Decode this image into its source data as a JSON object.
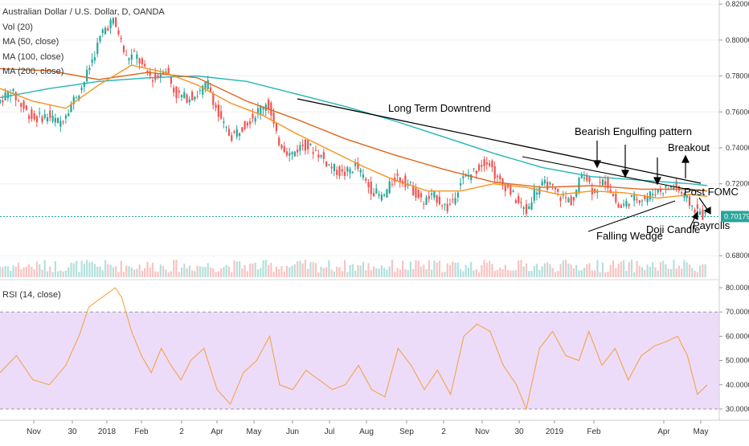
{
  "header": {
    "symbol_title": "Australian Dollar / U.S. Dollar, D, OANDA",
    "indicators": [
      "Vol (20)",
      "MA (50, close)",
      "MA (100, close)",
      "MA (200, close)"
    ]
  },
  "rsi_panel": {
    "label": "RSI (14, close)"
  },
  "colors": {
    "up": "#26a69a",
    "down": "#ef5350",
    "ma50": "#f7931e",
    "ma100": "#e0651a",
    "ma200": "#26b5b5",
    "rsi_line": "#f5a44a",
    "rsi_band": "#ecdcfa",
    "price_line": "#26a69a"
  },
  "chart_data": [
    {
      "type": "candlestick",
      "title": "Australian Dollar / U.S. Dollar, D, OANDA",
      "ylim": [
        0.668,
        0.8205
      ],
      "y_ticks": [
        "0.82000",
        "0.80000",
        "0.78000",
        "0.76000",
        "0.74000",
        "0.72000",
        "0.70179",
        "0.68000"
      ],
      "last_price": 0.70179,
      "x_ticks": [
        "Nov",
        "30",
        "2018",
        "Feb",
        "2",
        "Apr",
        "May",
        "Jun",
        "Jul",
        "Aug",
        "Sep",
        "2",
        "Nov",
        "30",
        "2019",
        "Feb",
        "Apr",
        "May"
      ],
      "price_path": [
        {
          "x": 0,
          "y": 0.765
        },
        {
          "x": 8,
          "y": 0.772
        },
        {
          "x": 15,
          "y": 0.763
        },
        {
          "x": 22,
          "y": 0.756
        },
        {
          "x": 30,
          "y": 0.758
        },
        {
          "x": 38,
          "y": 0.754
        },
        {
          "x": 45,
          "y": 0.765
        },
        {
          "x": 52,
          "y": 0.775
        },
        {
          "x": 58,
          "y": 0.79
        },
        {
          "x": 64,
          "y": 0.805
        },
        {
          "x": 70,
          "y": 0.811
        },
        {
          "x": 74,
          "y": 0.803
        },
        {
          "x": 78,
          "y": 0.79
        },
        {
          "x": 84,
          "y": 0.792
        },
        {
          "x": 90,
          "y": 0.782
        },
        {
          "x": 96,
          "y": 0.778
        },
        {
          "x": 102,
          "y": 0.785
        },
        {
          "x": 108,
          "y": 0.77
        },
        {
          "x": 115,
          "y": 0.768
        },
        {
          "x": 122,
          "y": 0.77
        },
        {
          "x": 128,
          "y": 0.776
        },
        {
          "x": 135,
          "y": 0.756
        },
        {
          "x": 142,
          "y": 0.746
        },
        {
          "x": 150,
          "y": 0.753
        },
        {
          "x": 158,
          "y": 0.76
        },
        {
          "x": 164,
          "y": 0.766
        },
        {
          "x": 170,
          "y": 0.745
        },
        {
          "x": 178,
          "y": 0.736
        },
        {
          "x": 186,
          "y": 0.742
        },
        {
          "x": 194,
          "y": 0.738
        },
        {
          "x": 202,
          "y": 0.73
        },
        {
          "x": 210,
          "y": 0.725
        },
        {
          "x": 218,
          "y": 0.73
        },
        {
          "x": 226,
          "y": 0.718
        },
        {
          "x": 234,
          "y": 0.712
        },
        {
          "x": 242,
          "y": 0.724
        },
        {
          "x": 250,
          "y": 0.72
        },
        {
          "x": 258,
          "y": 0.71
        },
        {
          "x": 266,
          "y": 0.713
        },
        {
          "x": 274,
          "y": 0.706
        },
        {
          "x": 282,
          "y": 0.722
        },
        {
          "x": 290,
          "y": 0.727
        },
        {
          "x": 298,
          "y": 0.734
        },
        {
          "x": 304,
          "y": 0.722
        },
        {
          "x": 310,
          "y": 0.718
        },
        {
          "x": 316,
          "y": 0.71
        },
        {
          "x": 322,
          "y": 0.704
        },
        {
          "x": 326,
          "y": 0.716
        },
        {
          "x": 334,
          "y": 0.72
        },
        {
          "x": 342,
          "y": 0.713
        },
        {
          "x": 350,
          "y": 0.71
        },
        {
          "x": 356,
          "y": 0.728
        },
        {
          "x": 362,
          "y": 0.716
        },
        {
          "x": 370,
          "y": 0.722
        },
        {
          "x": 378,
          "y": 0.706
        },
        {
          "x": 386,
          "y": 0.712
        },
        {
          "x": 394,
          "y": 0.712
        },
        {
          "x": 400,
          "y": 0.716
        },
        {
          "x": 406,
          "y": 0.717
        },
        {
          "x": 412,
          "y": 0.719
        },
        {
          "x": 418,
          "y": 0.712
        },
        {
          "x": 424,
          "y": 0.706
        },
        {
          "x": 430,
          "y": 0.702
        }
      ],
      "ma_50": [
        {
          "x": 0,
          "y": 0.773
        },
        {
          "x": 20,
          "y": 0.766
        },
        {
          "x": 40,
          "y": 0.762
        },
        {
          "x": 60,
          "y": 0.775
        },
        {
          "x": 80,
          "y": 0.786
        },
        {
          "x": 100,
          "y": 0.782
        },
        {
          "x": 120,
          "y": 0.775
        },
        {
          "x": 140,
          "y": 0.765
        },
        {
          "x": 160,
          "y": 0.758
        },
        {
          "x": 180,
          "y": 0.748
        },
        {
          "x": 200,
          "y": 0.739
        },
        {
          "x": 220,
          "y": 0.73
        },
        {
          "x": 240,
          "y": 0.722
        },
        {
          "x": 260,
          "y": 0.716
        },
        {
          "x": 280,
          "y": 0.716
        },
        {
          "x": 300,
          "y": 0.72
        },
        {
          "x": 320,
          "y": 0.718
        },
        {
          "x": 340,
          "y": 0.714
        },
        {
          "x": 360,
          "y": 0.716
        },
        {
          "x": 380,
          "y": 0.715
        },
        {
          "x": 400,
          "y": 0.712
        },
        {
          "x": 420,
          "y": 0.714
        },
        {
          "x": 430,
          "y": 0.713
        }
      ],
      "ma_100": [
        {
          "x": 0,
          "y": 0.784
        },
        {
          "x": 30,
          "y": 0.783
        },
        {
          "x": 60,
          "y": 0.778
        },
        {
          "x": 90,
          "y": 0.782
        },
        {
          "x": 120,
          "y": 0.779
        },
        {
          "x": 150,
          "y": 0.766
        },
        {
          "x": 180,
          "y": 0.756
        },
        {
          "x": 210,
          "y": 0.745
        },
        {
          "x": 240,
          "y": 0.736
        },
        {
          "x": 270,
          "y": 0.728
        },
        {
          "x": 300,
          "y": 0.721
        },
        {
          "x": 330,
          "y": 0.718
        },
        {
          "x": 360,
          "y": 0.719
        },
        {
          "x": 390,
          "y": 0.717
        },
        {
          "x": 420,
          "y": 0.717
        },
        {
          "x": 430,
          "y": 0.716
        }
      ],
      "ma_200": [
        {
          "x": 0,
          "y": 0.768
        },
        {
          "x": 30,
          "y": 0.773
        },
        {
          "x": 60,
          "y": 0.777
        },
        {
          "x": 90,
          "y": 0.779
        },
        {
          "x": 120,
          "y": 0.78
        },
        {
          "x": 150,
          "y": 0.777
        },
        {
          "x": 180,
          "y": 0.77
        },
        {
          "x": 210,
          "y": 0.763
        },
        {
          "x": 240,
          "y": 0.755
        },
        {
          "x": 270,
          "y": 0.746
        },
        {
          "x": 300,
          "y": 0.737
        },
        {
          "x": 330,
          "y": 0.729
        },
        {
          "x": 360,
          "y": 0.724
        },
        {
          "x": 390,
          "y": 0.722
        },
        {
          "x": 420,
          "y": 0.72
        },
        {
          "x": 430,
          "y": 0.719
        }
      ],
      "annotations": [
        "Long Term Downtrend",
        "Bearish Engulfing pattern",
        "Breakout",
        "Post FOMC",
        "Falling Wedge",
        "Doji Candle",
        "Payrolls"
      ]
    },
    {
      "type": "line",
      "title": "RSI (14, close)",
      "ylim": [
        27,
        82
      ],
      "y_ticks": [
        "80.0000",
        "70.0000",
        "60.0000",
        "50.0000",
        "40.0000",
        "30.0000"
      ],
      "band": [
        30,
        70
      ],
      "rsi": [
        {
          "x": 0,
          "y": 45
        },
        {
          "x": 10,
          "y": 52
        },
        {
          "x": 20,
          "y": 42
        },
        {
          "x": 30,
          "y": 40
        },
        {
          "x": 40,
          "y": 48
        },
        {
          "x": 48,
          "y": 60
        },
        {
          "x": 54,
          "y": 72
        },
        {
          "x": 60,
          "y": 75
        },
        {
          "x": 66,
          "y": 78
        },
        {
          "x": 70,
          "y": 80
        },
        {
          "x": 74,
          "y": 76
        },
        {
          "x": 80,
          "y": 62
        },
        {
          "x": 86,
          "y": 52
        },
        {
          "x": 92,
          "y": 45
        },
        {
          "x": 98,
          "y": 55
        },
        {
          "x": 104,
          "y": 48
        },
        {
          "x": 110,
          "y": 42
        },
        {
          "x": 116,
          "y": 50
        },
        {
          "x": 124,
          "y": 55
        },
        {
          "x": 132,
          "y": 38
        },
        {
          "x": 140,
          "y": 32
        },
        {
          "x": 148,
          "y": 45
        },
        {
          "x": 156,
          "y": 50
        },
        {
          "x": 164,
          "y": 60
        },
        {
          "x": 170,
          "y": 40
        },
        {
          "x": 178,
          "y": 38
        },
        {
          "x": 186,
          "y": 46
        },
        {
          "x": 194,
          "y": 42
        },
        {
          "x": 202,
          "y": 38
        },
        {
          "x": 210,
          "y": 40
        },
        {
          "x": 218,
          "y": 48
        },
        {
          "x": 226,
          "y": 38
        },
        {
          "x": 234,
          "y": 35
        },
        {
          "x": 242,
          "y": 55
        },
        {
          "x": 250,
          "y": 48
        },
        {
          "x": 258,
          "y": 38
        },
        {
          "x": 266,
          "y": 46
        },
        {
          "x": 274,
          "y": 36
        },
        {
          "x": 282,
          "y": 60
        },
        {
          "x": 290,
          "y": 65
        },
        {
          "x": 298,
          "y": 62
        },
        {
          "x": 306,
          "y": 48
        },
        {
          "x": 314,
          "y": 40
        },
        {
          "x": 320,
          "y": 30
        },
        {
          "x": 328,
          "y": 55
        },
        {
          "x": 336,
          "y": 62
        },
        {
          "x": 344,
          "y": 52
        },
        {
          "x": 352,
          "y": 50
        },
        {
          "x": 358,
          "y": 62
        },
        {
          "x": 366,
          "y": 48
        },
        {
          "x": 374,
          "y": 55
        },
        {
          "x": 382,
          "y": 42
        },
        {
          "x": 390,
          "y": 52
        },
        {
          "x": 398,
          "y": 56
        },
        {
          "x": 406,
          "y": 58
        },
        {
          "x": 412,
          "y": 60
        },
        {
          "x": 418,
          "y": 52
        },
        {
          "x": 424,
          "y": 36
        },
        {
          "x": 430,
          "y": 40
        }
      ]
    }
  ]
}
